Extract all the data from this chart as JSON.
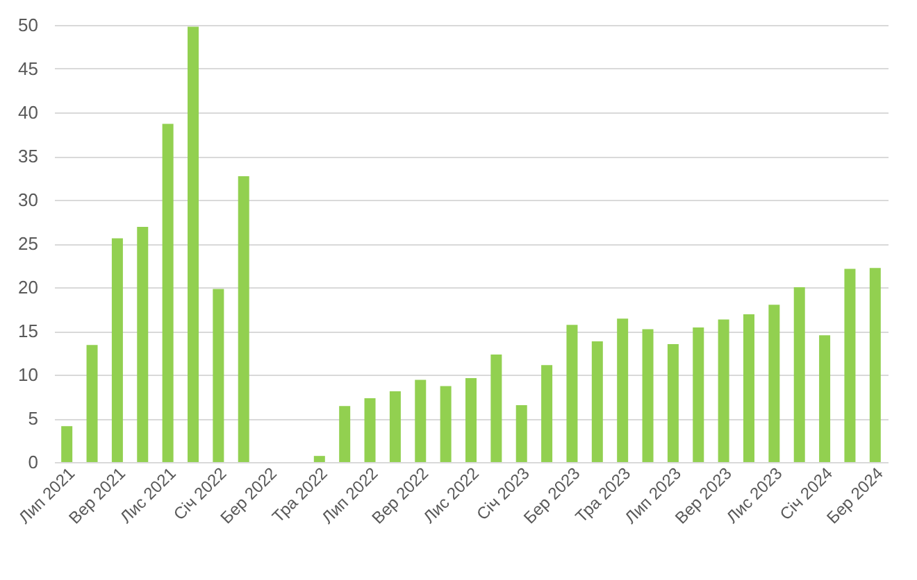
{
  "chart_data": {
    "type": "bar",
    "categories": [
      "Лип 2021",
      null,
      "Вер 2021",
      null,
      "Лис 2021",
      null,
      "Січ 2022",
      null,
      "Бер 2022",
      null,
      "Тра 2022",
      null,
      "Лип 2022",
      null,
      "Вер 2022",
      null,
      "Лис 2022",
      null,
      "Січ 2023",
      null,
      "Бер 2023",
      null,
      "Тра 2023",
      null,
      "Лип 2023",
      null,
      "Вер 2023",
      null,
      "Лис 2023",
      null,
      "Січ 2024",
      null,
      "Бер 2024"
    ],
    "values": [
      4.1,
      13.4,
      25.6,
      26.9,
      38.7,
      49.8,
      19.8,
      32.7,
      0,
      0,
      0.7,
      6.4,
      7.3,
      8.1,
      9.4,
      8.7,
      9.6,
      12.3,
      6.5,
      11.1,
      15.7,
      13.8,
      16.4,
      15.2,
      13.5,
      15.4,
      16.3,
      16.9,
      18.0,
      20.0,
      14.5,
      22.1,
      22.2
    ],
    "color": "#92d050",
    "ylim": [
      0,
      50
    ],
    "yticks": [
      0,
      5,
      10,
      15,
      20,
      25,
      30,
      35,
      40,
      45,
      50
    ],
    "grid": "y"
  }
}
